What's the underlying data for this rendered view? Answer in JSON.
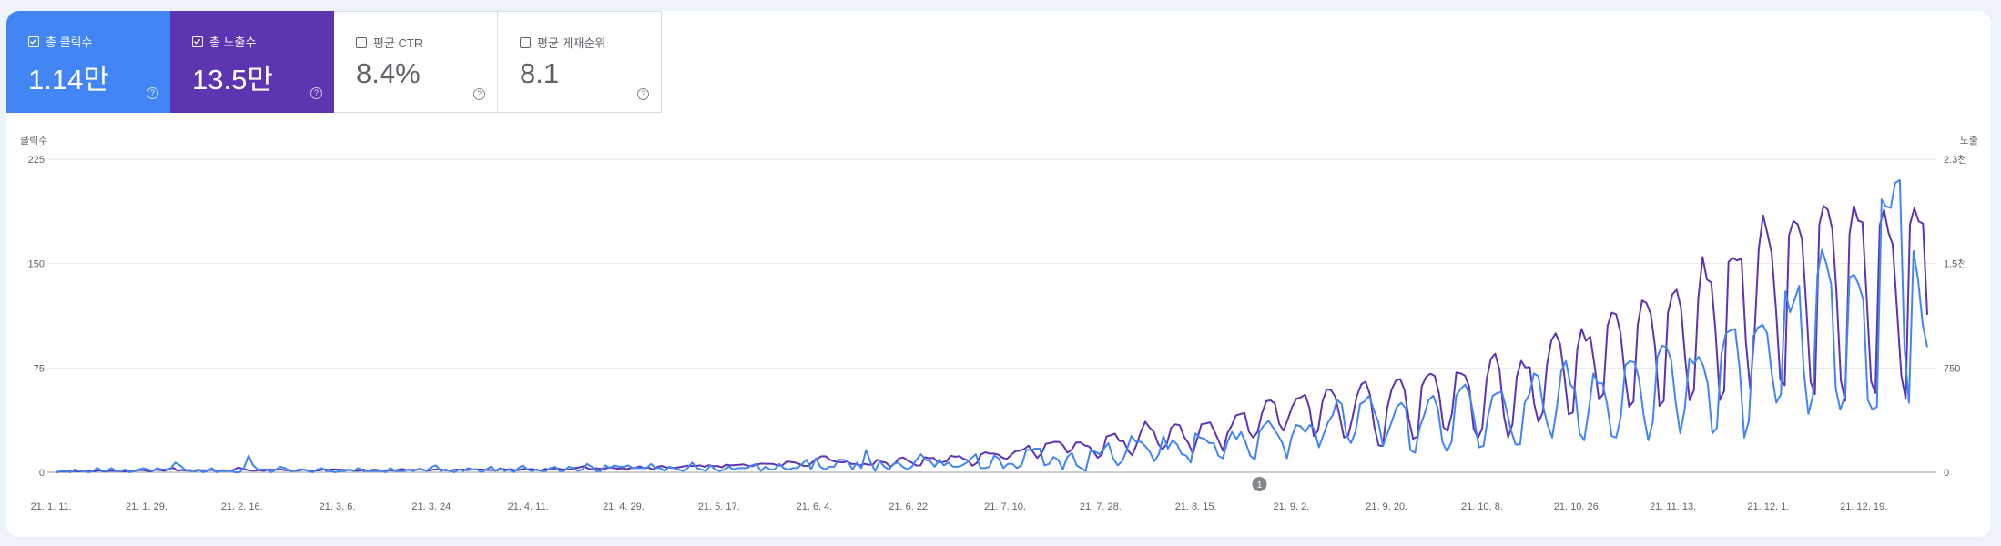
{
  "metrics": [
    {
      "label": "총 클릭수",
      "value": "1.14만",
      "checked": true,
      "color": "#4285f4"
    },
    {
      "label": "총 노출수",
      "value": "13.5만",
      "checked": true,
      "color": "#5e35b1"
    },
    {
      "label": "평균 CTR",
      "value": "8.4%",
      "checked": false
    },
    {
      "label": "평균 게재순위",
      "value": "8.1",
      "checked": false
    }
  ],
  "help_glyph": "?",
  "annotation_label": "1",
  "colors": {
    "clicks": "#4285f4",
    "impressions": "#5e35b1",
    "grid": "#e8eaed",
    "axis": "#9aa0a6",
    "text": "#5f6368"
  },
  "chart_data": {
    "type": "line",
    "left_axis": {
      "title": "클릭수",
      "ticks": [
        "225",
        "150",
        "75",
        "0"
      ],
      "range": [
        0,
        225
      ]
    },
    "right_axis": {
      "title": "노출",
      "ticks": [
        "2.3천",
        "1.5천",
        "750",
        "0"
      ],
      "range": [
        0,
        2300
      ]
    },
    "x_tick_labels": [
      "21. 1. 11.",
      "21. 1. 29.",
      "21. 2. 16.",
      "21. 3. 6.",
      "21. 3. 24.",
      "21. 4. 11.",
      "21. 4. 29.",
      "21. 5. 17.",
      "21. 6. 4.",
      "21. 6. 22.",
      "21. 7. 10.",
      "21. 7. 28.",
      "21. 8. 15.",
      "21. 9. 2.",
      "21. 9. 20.",
      "21. 10. 8.",
      "21. 10. 26.",
      "21. 11. 13.",
      "21. 12. 1.",
      "21. 12. 19."
    ],
    "x_range": [
      "2021-01-12",
      "2021-12-31"
    ],
    "tick_start_date": "2021-01-11",
    "tick_interval_days": 18,
    "annotation_date": "2021-08-27",
    "series": [
      {
        "name": "클릭수",
        "axis": "left",
        "color": "#4285f4",
        "values": [
          0,
          1,
          1,
          0,
          2,
          1,
          1,
          0,
          1,
          3,
          1,
          1,
          3,
          1,
          1,
          2,
          0,
          1,
          2,
          3,
          2,
          1,
          3,
          2,
          2,
          3,
          7,
          5,
          2,
          1,
          1,
          2,
          0,
          1,
          3,
          0,
          1,
          1,
          1,
          0,
          0,
          3,
          12,
          5,
          2,
          2,
          2,
          0,
          2,
          4,
          3,
          1,
          1,
          2,
          2,
          1,
          0,
          2,
          3,
          1,
          1,
          0,
          1,
          1,
          2,
          1,
          3,
          1,
          1,
          1,
          1,
          1,
          0,
          3,
          1,
          1,
          1,
          2,
          1,
          2,
          2,
          1,
          4,
          5,
          1,
          2,
          1,
          0,
          2,
          1,
          3,
          2,
          2,
          0,
          2,
          4,
          1,
          3,
          1,
          2,
          0,
          3,
          5,
          2,
          1,
          2,
          1,
          1,
          3,
          4,
          1,
          1,
          4,
          3,
          1,
          2,
          6,
          4,
          1,
          1,
          5,
          3,
          5,
          4,
          4,
          5,
          3,
          3,
          3,
          3,
          6,
          3,
          3,
          1,
          4,
          3,
          2,
          1,
          3,
          7,
          3,
          2,
          1,
          5,
          2,
          1,
          2,
          4,
          2,
          3,
          3,
          3,
          5,
          6,
          1,
          4,
          2,
          2,
          6,
          3,
          2,
          3,
          3,
          6,
          9,
          2,
          10,
          4,
          2,
          4,
          4,
          9,
          9,
          8,
          2,
          7,
          3,
          16,
          7,
          1,
          8,
          4,
          2,
          6,
          7,
          4,
          2,
          4,
          9,
          13,
          9,
          8,
          4,
          9,
          5,
          7,
          4,
          4,
          5,
          7,
          10,
          13,
          3,
          3,
          4,
          12,
          10,
          3,
          6,
          6,
          3,
          5,
          16,
          16,
          17,
          17,
          5,
          6,
          11,
          9,
          2,
          11,
          14,
          5,
          3,
          1,
          15,
          15,
          13,
          17,
          21,
          10,
          5,
          8,
          16,
          26,
          22,
          22,
          19,
          15,
          8,
          13,
          26,
          17,
          23,
          20,
          13,
          12,
          7,
          28,
          25,
          24,
          21,
          21,
          12,
          10,
          22,
          29,
          24,
          29,
          21,
          12,
          9,
          29,
          34,
          37,
          32,
          27,
          21,
          10,
          25,
          34,
          33,
          29,
          34,
          31,
          18,
          27,
          36,
          41,
          52,
          49,
          27,
          21,
          29,
          49,
          51,
          55,
          45,
          36,
          19,
          28,
          37,
          47,
          50,
          46,
          16,
          14,
          32,
          41,
          52,
          55,
          46,
          22,
          15,
          22,
          55,
          60,
          63,
          55,
          37,
          18,
          19,
          41,
          55,
          57,
          58,
          45,
          30,
          20,
          20,
          50,
          56,
          71,
          69,
          48,
          34,
          25,
          46,
          73,
          80,
          63,
          59,
          28,
          23,
          45,
          71,
          64,
          64,
          49,
          26,
          25,
          40,
          77,
          80,
          79,
          67,
          41,
          23,
          36,
          83,
          91,
          90,
          81,
          50,
          28,
          46,
          82,
          78,
          83,
          77,
          64,
          28,
          32,
          85,
          100,
          102,
          103,
          74,
          25,
          37,
          98,
          104,
          106,
          100,
          71,
          50,
          56,
          130,
          115,
          124,
          134,
          73,
          42,
          55,
          142,
          160,
          149,
          135,
          60,
          45,
          55,
          140,
          142,
          135,
          124,
          52,
          45,
          47,
          196,
          191,
          190,
          208,
          210,
          90,
          50,
          159,
          138,
          106,
          90
        ]
      },
      {
        "name": "노출",
        "axis": "right",
        "color": "#5e35b1",
        "values": [
          0,
          6,
          4,
          7,
          10,
          6,
          8,
          10,
          6,
          8,
          14,
          4,
          11,
          12,
          9,
          10,
          5,
          12,
          8,
          16,
          16,
          10,
          7,
          20,
          16,
          11,
          25,
          33,
          12,
          17,
          13,
          16,
          8,
          17,
          14,
          14,
          19,
          5,
          15,
          14,
          12,
          16,
          35,
          27,
          18,
          13,
          13,
          16,
          11,
          21,
          19,
          19,
          21,
          15,
          16,
          11,
          13,
          20,
          14,
          11,
          13,
          14,
          22,
          17,
          22,
          20,
          19,
          17,
          18,
          12,
          12,
          20,
          11,
          18,
          19,
          13,
          14,
          15,
          12,
          18,
          25,
          16,
          19,
          17,
          24,
          16,
          12,
          18,
          21,
          20,
          15,
          13,
          19,
          20,
          20,
          16,
          20,
          21,
          21,
          18,
          17,
          16,
          14,
          24,
          20,
          23,
          16,
          16,
          25,
          23,
          24,
          18,
          13,
          24,
          23,
          26,
          28,
          21,
          21,
          21,
          31,
          36,
          45,
          29,
          20,
          30,
          25,
          27,
          36,
          31,
          26,
          30,
          23,
          32,
          33,
          44,
          30,
          35,
          21,
          38,
          47,
          37,
          34,
          32,
          37,
          43,
          49,
          47,
          46,
          51,
          41,
          52,
          45,
          46,
          37,
          56,
          51,
          53,
          55,
          58,
          49,
          45,
          55,
          64,
          63,
          63,
          61,
          49,
          51,
          78,
          76,
          71,
          60,
          46,
          47,
          76,
          98,
          117,
          118,
          92,
          81,
          76,
          73,
          79,
          62,
          61,
          50,
          63,
          55,
          58,
          93,
          77,
          71,
          41,
          64,
          102,
          109,
          86,
          70,
          50,
          51,
          110,
          103,
          106,
          73,
          75,
          81,
          121,
          114,
          118,
          98,
          86,
          48,
          68,
          132,
          147,
          138,
          137,
          130,
          106,
          98,
          130,
          156,
          159,
          171,
          196,
          151,
          105,
          139,
          210,
          215,
          224,
          223,
          198,
          144,
          167,
          219,
          220,
          198,
          189,
          153,
          106,
          131,
          263,
          273,
          284,
          231,
          227,
          159,
          125,
          206,
          298,
          372,
          329,
          296,
          208,
          170,
          209,
          328,
          353,
          346,
          260,
          214,
          137,
          242,
          353,
          359,
          367,
          303,
          230,
          158,
          287,
          342,
          418,
          427,
          436,
          298,
          254,
          296,
          432,
          522,
          529,
          504,
          357,
          306,
          390,
          480,
          541,
          550,
          570,
          475,
          267,
          306,
          519,
          610,
          603,
          555,
          414,
          255,
          271,
          408,
          563,
          646,
          666,
          573,
          341,
          198,
          193,
          471,
          606,
          672,
          685,
          606,
          389,
          246,
          264,
          631,
          700,
          725,
          708,
          579,
          331,
          305,
          433,
          733,
          727,
          710,
          628,
          320,
          252,
          323,
          680,
          835,
          871,
          751,
          419,
          258,
          354,
          702,
          819,
          770,
          772,
          506,
          371,
          438,
          797,
          969,
          1021,
          946,
          713,
          425,
          440,
          907,
          1054,
          966,
          997,
          782,
          537,
          574,
          1075,
          1173,
          1160,
          1027,
          716,
          482,
          521,
          1082,
          1262,
          1244,
          1162,
          921,
          488,
          525,
          1172,
          1307,
          1342,
          1207,
          827,
          529,
          604,
          1277,
          1581,
          1416,
          1395,
          1037,
          531,
          598,
          1546,
          1575,
          1556,
          1571,
          965,
          616,
          1008,
          1640,
          1887,
          1755,
          1610,
          1192,
          679,
          639,
          1739,
          1846,
          1823,
          1712,
          1217,
          664,
          574,
          1819,
          1957,
          1929,
          1788,
          1320,
          675,
          525,
          1749,
          1958,
          1849,
          1837,
          1263,
          668,
          583,
          1813,
          1929,
          1763,
          1675,
          1194,
          712,
          539,
          1820,
          1940,
          1845,
          1827,
          1158
        ]
      }
    ]
  }
}
